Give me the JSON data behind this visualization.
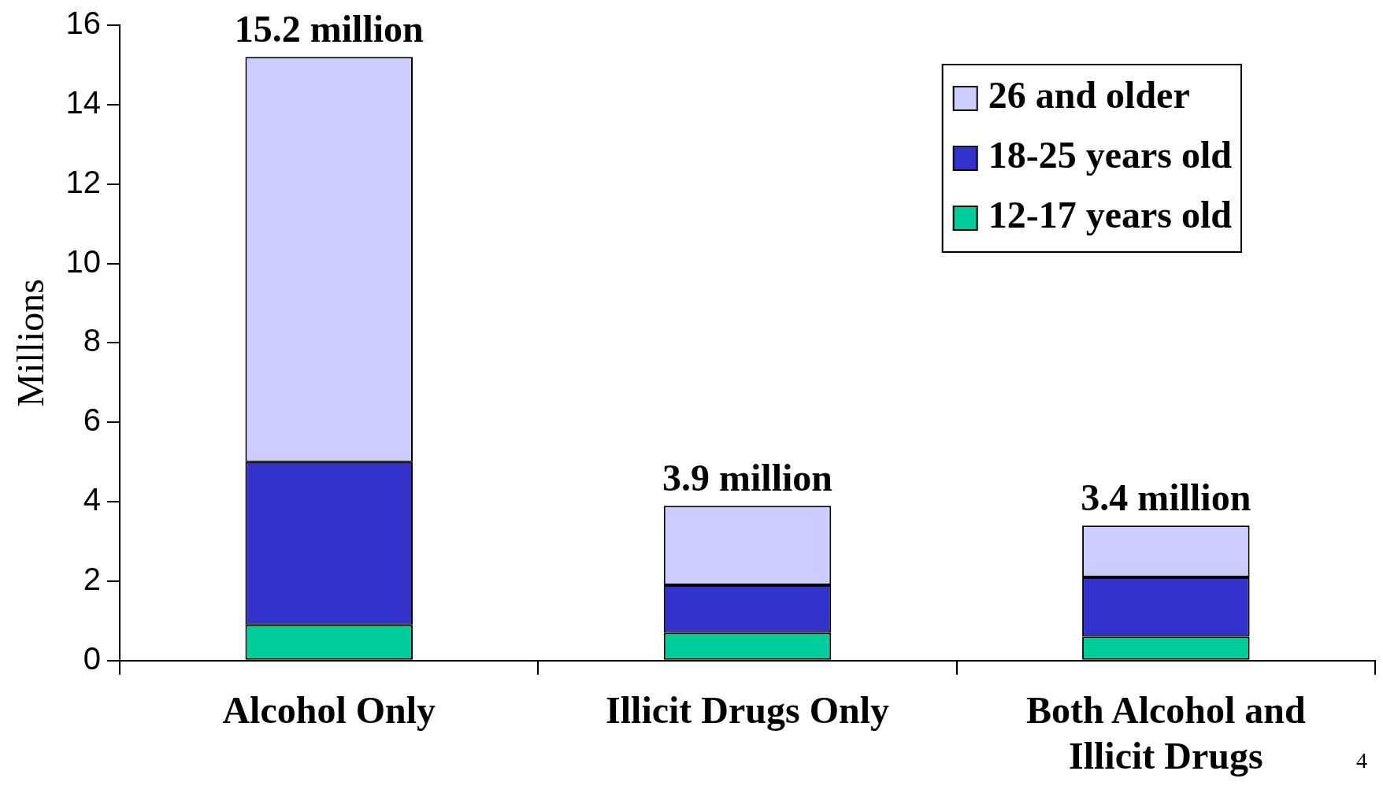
{
  "chart_data": {
    "type": "bar",
    "stacked": true,
    "ylabel": "Millions",
    "categories": [
      "Alcohol Only",
      "Illicit Drugs Only",
      "Both Alcohol and Illicit Drugs"
    ],
    "series": [
      {
        "name": "12-17 years old",
        "color": "#00cc99",
        "values": [
          0.9,
          0.7,
          0.6
        ]
      },
      {
        "name": "18-25 years old",
        "color": "#3333cc",
        "values": [
          4.1,
          1.2,
          1.5
        ]
      },
      {
        "name": "26 and older",
        "color": "#ccccff",
        "values": [
          10.2,
          2.0,
          1.3
        ]
      }
    ],
    "totals": [
      "15.2 million",
      "3.9 million",
      "3.4 million"
    ],
    "ylim": [
      0,
      16
    ],
    "yticks": [
      0,
      2,
      4,
      6,
      8,
      10,
      12,
      14,
      16
    ],
    "grid": false,
    "legend": "top right",
    "annotations": [
      "4"
    ]
  }
}
